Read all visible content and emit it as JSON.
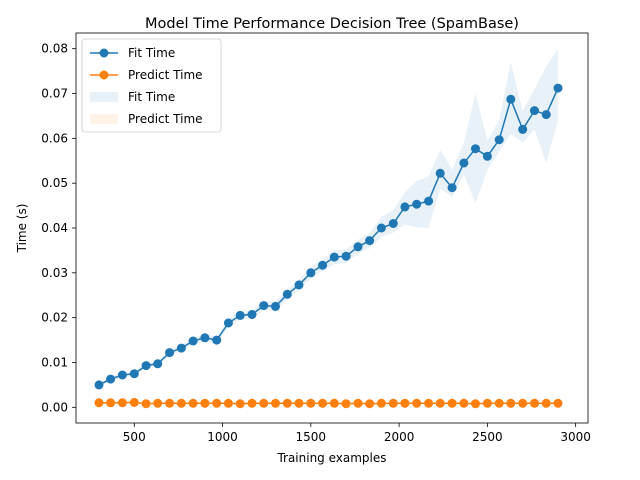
{
  "chart_data": {
    "type": "line",
    "title": "Model Time Performance Decision Tree (SpamBase)",
    "xlabel": "Training examples",
    "ylabel": "Time (s)",
    "xlim": [
      170,
      3070
    ],
    "ylim": [
      -0.0035,
      0.0835
    ],
    "xticks": [
      500,
      1000,
      1500,
      2000,
      2500,
      3000
    ],
    "yticks": [
      0.0,
      0.01,
      0.02,
      0.03,
      0.04,
      0.05,
      0.06,
      0.07,
      0.08
    ],
    "xtick_labels": [
      "500",
      "1000",
      "1500",
      "2000",
      "2500",
      "3000"
    ],
    "ytick_labels": [
      "0.00",
      "0.01",
      "0.02",
      "0.03",
      "0.04",
      "0.05",
      "0.06",
      "0.07",
      "0.08"
    ],
    "grid": false,
    "legend_position": "upper-left",
    "x": [
      300,
      366,
      433,
      500,
      567,
      633,
      700,
      767,
      833,
      900,
      967,
      1033,
      1100,
      1167,
      1233,
      1300,
      1367,
      1433,
      1500,
      1567,
      1633,
      1700,
      1767,
      1833,
      1900,
      1967,
      2033,
      2100,
      2167,
      2233,
      2300,
      2367,
      2433,
      2500,
      2567,
      2633,
      2700,
      2767,
      2833,
      2900
    ],
    "series": [
      {
        "name": "Fit Time",
        "color": "#1f77b4",
        "marker": "circle",
        "values": [
          0.005,
          0.0063,
          0.0072,
          0.0075,
          0.0093,
          0.0097,
          0.0122,
          0.0132,
          0.0148,
          0.0155,
          0.015,
          0.0188,
          0.0205,
          0.0207,
          0.0227,
          0.0225,
          0.0252,
          0.0273,
          0.03,
          0.0317,
          0.0335,
          0.0337,
          0.0358,
          0.0372,
          0.04,
          0.041,
          0.0447,
          0.0453,
          0.046,
          0.0522,
          0.049,
          0.0545,
          0.0577,
          0.056,
          0.0597,
          0.0687,
          0.062,
          0.0662,
          0.0653,
          0.0712
        ],
        "band_lower": [
          0.0045,
          0.0058,
          0.0067,
          0.007,
          0.0087,
          0.0091,
          0.0115,
          0.0125,
          0.014,
          0.0147,
          0.0143,
          0.0178,
          0.0195,
          0.0198,
          0.0217,
          0.0214,
          0.024,
          0.0262,
          0.0287,
          0.0304,
          0.032,
          0.0322,
          0.0343,
          0.0355,
          0.038,
          0.039,
          0.0408,
          0.0402,
          0.04,
          0.0488,
          0.047,
          0.052,
          0.0455,
          0.053,
          0.057,
          0.061,
          0.059,
          0.062,
          0.0545,
          0.064
        ],
        "band_upper": [
          0.0055,
          0.0068,
          0.0077,
          0.008,
          0.0099,
          0.0103,
          0.0129,
          0.0139,
          0.0156,
          0.0163,
          0.0157,
          0.0198,
          0.0215,
          0.0216,
          0.0237,
          0.0236,
          0.0264,
          0.0284,
          0.0313,
          0.033,
          0.035,
          0.0352,
          0.0373,
          0.0389,
          0.0425,
          0.044,
          0.048,
          0.0505,
          0.0515,
          0.0575,
          0.053,
          0.059,
          0.07,
          0.0595,
          0.064,
          0.077,
          0.066,
          0.071,
          0.076,
          0.08
        ]
      },
      {
        "name": "Predict Time",
        "color": "#ff7f0e",
        "marker": "circle",
        "values": [
          0.001,
          0.001,
          0.001,
          0.0011,
          0.0008,
          0.0009,
          0.0009,
          0.0009,
          0.0009,
          0.0009,
          0.0009,
          0.0009,
          0.0008,
          0.0009,
          0.0009,
          0.0009,
          0.0009,
          0.0009,
          0.0009,
          0.0009,
          0.0009,
          0.0008,
          0.0009,
          0.0008,
          0.0009,
          0.0009,
          0.0009,
          0.0009,
          0.0009,
          0.0009,
          0.0009,
          0.0009,
          0.0008,
          0.0009,
          0.0009,
          0.0009,
          0.0009,
          0.0009,
          0.0009,
          0.0009
        ],
        "band_lower": [
          0.0008,
          0.0008,
          0.0008,
          0.0009,
          0.0006,
          0.0007,
          0.0007,
          0.0007,
          0.0007,
          0.0007,
          0.0007,
          0.0007,
          0.0006,
          0.0007,
          0.0007,
          0.0007,
          0.0007,
          0.0007,
          0.0007,
          0.0007,
          0.0007,
          0.0006,
          0.0007,
          0.0006,
          0.0007,
          0.0007,
          0.0007,
          0.0007,
          0.0007,
          0.0007,
          0.0007,
          0.0007,
          0.0006,
          0.0007,
          0.0007,
          0.0007,
          0.0007,
          0.0007,
          0.0007,
          0.0007
        ],
        "band_upper": [
          0.0012,
          0.0012,
          0.0012,
          0.0013,
          0.001,
          0.0011,
          0.0011,
          0.0011,
          0.0011,
          0.0011,
          0.0011,
          0.0011,
          0.001,
          0.0011,
          0.0011,
          0.0011,
          0.0011,
          0.0011,
          0.0011,
          0.0011,
          0.0011,
          0.001,
          0.0011,
          0.001,
          0.0011,
          0.0011,
          0.0011,
          0.0011,
          0.0011,
          0.0011,
          0.0011,
          0.0011,
          0.001,
          0.0011,
          0.0011,
          0.0011,
          0.0011,
          0.0011,
          0.0011,
          0.0011
        ]
      }
    ],
    "legend": [
      {
        "label": "Fit Time",
        "kind": "line-marker",
        "color": "#1f77b4"
      },
      {
        "label": "Predict Time",
        "kind": "line-marker",
        "color": "#ff7f0e"
      },
      {
        "label": "Fit Time",
        "kind": "band",
        "color": "#1f77b4"
      },
      {
        "label": "Predict Time",
        "kind": "band",
        "color": "#ff7f0e"
      }
    ]
  }
}
